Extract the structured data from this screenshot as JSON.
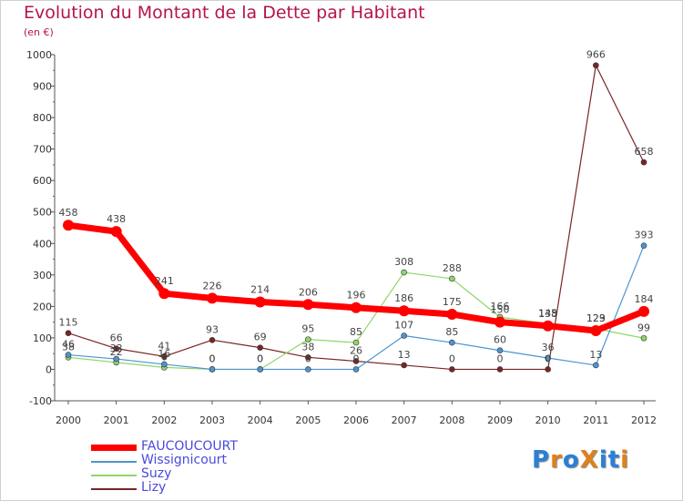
{
  "title": "Evolution du Montant de la Dette par Habitant",
  "unit": "(en €)",
  "logo": {
    "text": "ProXiti",
    "letters": [
      "P",
      "r",
      "o",
      "X",
      "i",
      "t",
      "i"
    ],
    "letter_colors": [
      "#2a7fd8",
      "#e0801a",
      "#2a7fd8",
      "#e0801a",
      "#2a7fd8",
      "#2a7fd8",
      "#e0801a"
    ]
  },
  "chart_data": {
    "type": "line",
    "title": "Evolution du Montant de la Dette par Habitant",
    "ylabel": "(en €)",
    "xlabel": "",
    "categories": [
      "2000",
      "2001",
      "2002",
      "2003",
      "2004",
      "2005",
      "2006",
      "2007",
      "2008",
      "2009",
      "2010",
      "2011",
      "2012"
    ],
    "ylim": [
      -100,
      1000
    ],
    "yticks": [
      -100,
      0,
      100,
      200,
      300,
      400,
      500,
      600,
      700,
      800,
      900,
      1000
    ],
    "grid": false,
    "legend_position": "bottom-left",
    "series": [
      {
        "name": "FAUCOUCOURT",
        "color": "#ff0000",
        "values": [
          458,
          438,
          241,
          226,
          214,
          206,
          196,
          186,
          175,
          150,
          138,
          123,
          184
        ],
        "labels": [
          "458",
          "438",
          "241",
          "226",
          "214",
          "206",
          "196",
          "186",
          "175",
          "150",
          "138",
          "123",
          "184"
        ]
      },
      {
        "name": "Wissignicourt",
        "color": "#4d94d1",
        "values": [
          46,
          33,
          16,
          0,
          0,
          0,
          0,
          107,
          85,
          60,
          36,
          13,
          393
        ],
        "labels": [
          "46",
          "33",
          "16",
          "0",
          "0",
          "0",
          "0",
          "107",
          "85",
          "60",
          "36",
          "13",
          "393"
        ]
      },
      {
        "name": "Suzy",
        "color": "#8fd66a",
        "values": [
          38,
          22,
          6,
          0,
          0,
          95,
          85,
          308,
          288,
          166,
          145,
          129,
          99
        ],
        "labels": [
          "38",
          "22",
          "6",
          "0",
          "0",
          "95",
          "85",
          "308",
          "288",
          "166",
          "145",
          "129",
          "99"
        ]
      },
      {
        "name": "Lizy",
        "color": "#7a2525",
        "values": [
          115,
          66,
          41,
          93,
          69,
          38,
          26,
          13,
          0,
          0,
          0,
          966,
          658
        ],
        "labels": [
          "115",
          "66",
          "41",
          "93",
          "69",
          "38",
          "26",
          "13",
          "0",
          "0",
          "0",
          "966",
          "658"
        ]
      }
    ]
  }
}
